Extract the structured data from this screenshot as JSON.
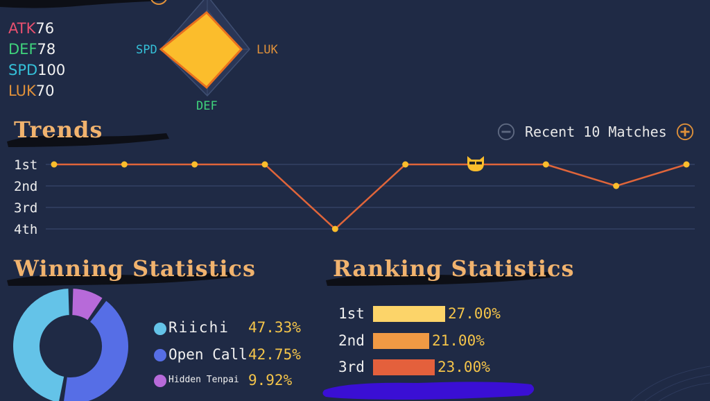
{
  "radar": {
    "stats": [
      {
        "key": "ATK",
        "value": "76",
        "color": "#e8506f"
      },
      {
        "key": "DEF",
        "value": "78",
        "color": "#3fd37c"
      },
      {
        "key": "SPD",
        "value": "100",
        "color": "#35c0d8"
      },
      {
        "key": "LUK",
        "value": "70",
        "color": "#e0913a"
      }
    ],
    "labels": {
      "left": "SPD",
      "right": "LUK",
      "bottom": "DEF"
    },
    "fill_color": "#fbbd2c",
    "outline_color": "#e8701e"
  },
  "trends": {
    "title": "Trends",
    "match_control": {
      "label": "Recent 10 Matches"
    },
    "y_labels": [
      "1st",
      "2nd",
      "3rd",
      "4th"
    ],
    "chart_data": {
      "type": "line",
      "x": [
        1,
        2,
        3,
        4,
        5,
        6,
        7,
        8,
        9,
        10
      ],
      "values": [
        1,
        1,
        1,
        1,
        4,
        1,
        1,
        1,
        2,
        1
      ],
      "categories": [
        "1st",
        "2nd",
        "3rd",
        "4th"
      ],
      "line_color": "#e0653a",
      "point_color": "#fbbd2c",
      "grid": true
    }
  },
  "winning": {
    "title": "Winning Statistics",
    "items": [
      {
        "label": "Riichi",
        "pct": "47.33%",
        "value": 47.33,
        "color": "#64c3e8"
      },
      {
        "label": "Open Call",
        "pct": "42.75%",
        "value": 42.75,
        "color": "#566ee6"
      },
      {
        "label": "Hidden Tenpai",
        "pct": "9.92%",
        "value": 9.92,
        "color": "#b76ad9"
      }
    ]
  },
  "ranking": {
    "title": "Ranking Statistics",
    "items": [
      {
        "label": "1st",
        "pct": "27.00%",
        "value": 27,
        "color": "#fcd469"
      },
      {
        "label": "2nd",
        "pct": "21.00%",
        "value": 21,
        "color": "#f19a44"
      },
      {
        "label": "3rd",
        "pct": "23.00%",
        "value": 23,
        "color": "#e4603c"
      }
    ]
  }
}
